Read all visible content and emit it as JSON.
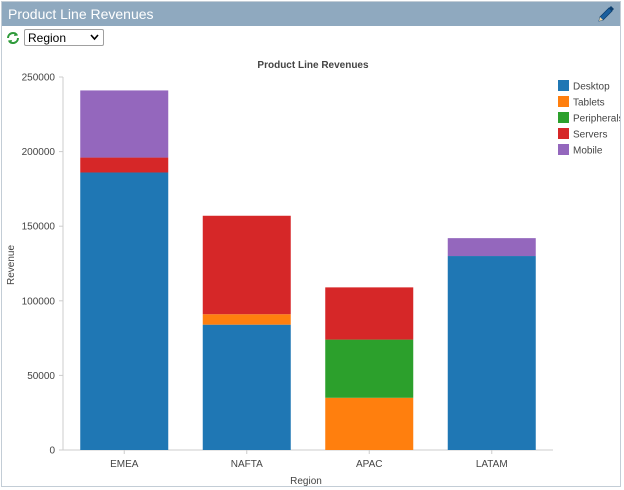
{
  "panel": {
    "title": "Product Line Revenues",
    "edit_icon": "pencil-icon",
    "refresh_icon": "refresh-icon"
  },
  "filter": {
    "selected": "Region",
    "icon": "chevron-down-icon"
  },
  "colors": {
    "header_bg": "#8fa9bf",
    "Desktop": "#1f77b4",
    "Tablets": "#ff7f0e",
    "Peripherals": "#2ca02c",
    "Servers": "#d62728",
    "Mobile": "#9467bd"
  },
  "chart_data": {
    "type": "bar",
    "stacked": true,
    "title": "Product Line Revenues",
    "xlabel": "Region",
    "ylabel": "Revenue",
    "categories": [
      "EMEA",
      "NAFTA",
      "APAC",
      "LATAM"
    ],
    "ylim": [
      0,
      250000
    ],
    "yticks": [
      "0",
      "50000",
      "100000",
      "150000",
      "200000",
      "250000"
    ],
    "legend_position": "top-right",
    "grid": false,
    "series": [
      {
        "name": "Desktop",
        "color": "#1f77b4",
        "values": [
          186000,
          84000,
          0,
          130000
        ]
      },
      {
        "name": "Tablets",
        "color": "#ff7f0e",
        "values": [
          0,
          7000,
          35000,
          0
        ]
      },
      {
        "name": "Peripherals",
        "color": "#2ca02c",
        "values": [
          0,
          0,
          39000,
          0
        ]
      },
      {
        "name": "Servers",
        "color": "#d62728",
        "values": [
          10000,
          66000,
          35000,
          0
        ]
      },
      {
        "name": "Mobile",
        "color": "#9467bd",
        "values": [
          45000,
          0,
          0,
          12000
        ]
      }
    ]
  }
}
